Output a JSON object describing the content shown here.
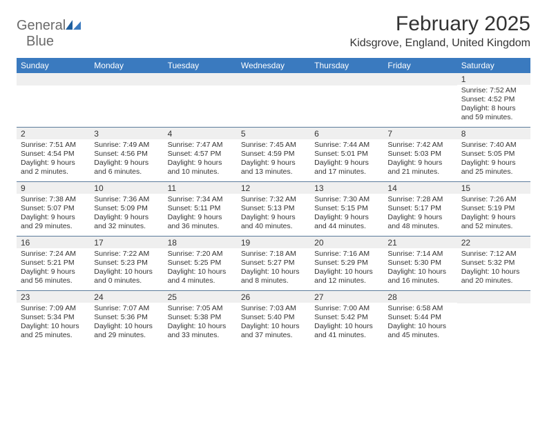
{
  "logo": {
    "word1": "General",
    "word2": "Blue"
  },
  "title": "February 2025",
  "location": "Kidsgrove, England, United Kingdom",
  "colors": {
    "header_bar": "#3a7abf",
    "daynum_bg": "#efefef",
    "week_divider": "#5a7a9a",
    "text": "#333333",
    "logo_gray": "#6a6a6a"
  },
  "typography": {
    "title_fontsize": 30,
    "location_fontsize": 16,
    "dow_fontsize": 12,
    "daynum_fontsize": 12,
    "body_fontsize": 10.5
  },
  "days_of_week": [
    "Sunday",
    "Monday",
    "Tuesday",
    "Wednesday",
    "Thursday",
    "Friday",
    "Saturday"
  ],
  "weeks": [
    [
      null,
      null,
      null,
      null,
      null,
      null,
      {
        "n": "1",
        "sunrise": "7:52 AM",
        "sunset": "4:52 PM",
        "daylight": "8 hours and 59 minutes."
      }
    ],
    [
      {
        "n": "2",
        "sunrise": "7:51 AM",
        "sunset": "4:54 PM",
        "daylight": "9 hours and 2 minutes."
      },
      {
        "n": "3",
        "sunrise": "7:49 AM",
        "sunset": "4:56 PM",
        "daylight": "9 hours and 6 minutes."
      },
      {
        "n": "4",
        "sunrise": "7:47 AM",
        "sunset": "4:57 PM",
        "daylight": "9 hours and 10 minutes."
      },
      {
        "n": "5",
        "sunrise": "7:45 AM",
        "sunset": "4:59 PM",
        "daylight": "9 hours and 13 minutes."
      },
      {
        "n": "6",
        "sunrise": "7:44 AM",
        "sunset": "5:01 PM",
        "daylight": "9 hours and 17 minutes."
      },
      {
        "n": "7",
        "sunrise": "7:42 AM",
        "sunset": "5:03 PM",
        "daylight": "9 hours and 21 minutes."
      },
      {
        "n": "8",
        "sunrise": "7:40 AM",
        "sunset": "5:05 PM",
        "daylight": "9 hours and 25 minutes."
      }
    ],
    [
      {
        "n": "9",
        "sunrise": "7:38 AM",
        "sunset": "5:07 PM",
        "daylight": "9 hours and 29 minutes."
      },
      {
        "n": "10",
        "sunrise": "7:36 AM",
        "sunset": "5:09 PM",
        "daylight": "9 hours and 32 minutes."
      },
      {
        "n": "11",
        "sunrise": "7:34 AM",
        "sunset": "5:11 PM",
        "daylight": "9 hours and 36 minutes."
      },
      {
        "n": "12",
        "sunrise": "7:32 AM",
        "sunset": "5:13 PM",
        "daylight": "9 hours and 40 minutes."
      },
      {
        "n": "13",
        "sunrise": "7:30 AM",
        "sunset": "5:15 PM",
        "daylight": "9 hours and 44 minutes."
      },
      {
        "n": "14",
        "sunrise": "7:28 AM",
        "sunset": "5:17 PM",
        "daylight": "9 hours and 48 minutes."
      },
      {
        "n": "15",
        "sunrise": "7:26 AM",
        "sunset": "5:19 PM",
        "daylight": "9 hours and 52 minutes."
      }
    ],
    [
      {
        "n": "16",
        "sunrise": "7:24 AM",
        "sunset": "5:21 PM",
        "daylight": "9 hours and 56 minutes."
      },
      {
        "n": "17",
        "sunrise": "7:22 AM",
        "sunset": "5:23 PM",
        "daylight": "10 hours and 0 minutes."
      },
      {
        "n": "18",
        "sunrise": "7:20 AM",
        "sunset": "5:25 PM",
        "daylight": "10 hours and 4 minutes."
      },
      {
        "n": "19",
        "sunrise": "7:18 AM",
        "sunset": "5:27 PM",
        "daylight": "10 hours and 8 minutes."
      },
      {
        "n": "20",
        "sunrise": "7:16 AM",
        "sunset": "5:29 PM",
        "daylight": "10 hours and 12 minutes."
      },
      {
        "n": "21",
        "sunrise": "7:14 AM",
        "sunset": "5:30 PM",
        "daylight": "10 hours and 16 minutes."
      },
      {
        "n": "22",
        "sunrise": "7:12 AM",
        "sunset": "5:32 PM",
        "daylight": "10 hours and 20 minutes."
      }
    ],
    [
      {
        "n": "23",
        "sunrise": "7:09 AM",
        "sunset": "5:34 PM",
        "daylight": "10 hours and 25 minutes."
      },
      {
        "n": "24",
        "sunrise": "7:07 AM",
        "sunset": "5:36 PM",
        "daylight": "10 hours and 29 minutes."
      },
      {
        "n": "25",
        "sunrise": "7:05 AM",
        "sunset": "5:38 PM",
        "daylight": "10 hours and 33 minutes."
      },
      {
        "n": "26",
        "sunrise": "7:03 AM",
        "sunset": "5:40 PM",
        "daylight": "10 hours and 37 minutes."
      },
      {
        "n": "27",
        "sunrise": "7:00 AM",
        "sunset": "5:42 PM",
        "daylight": "10 hours and 41 minutes."
      },
      {
        "n": "28",
        "sunrise": "6:58 AM",
        "sunset": "5:44 PM",
        "daylight": "10 hours and 45 minutes."
      },
      null
    ]
  ],
  "labels": {
    "sunrise": "Sunrise: ",
    "sunset": "Sunset: ",
    "daylight": "Daylight: "
  }
}
